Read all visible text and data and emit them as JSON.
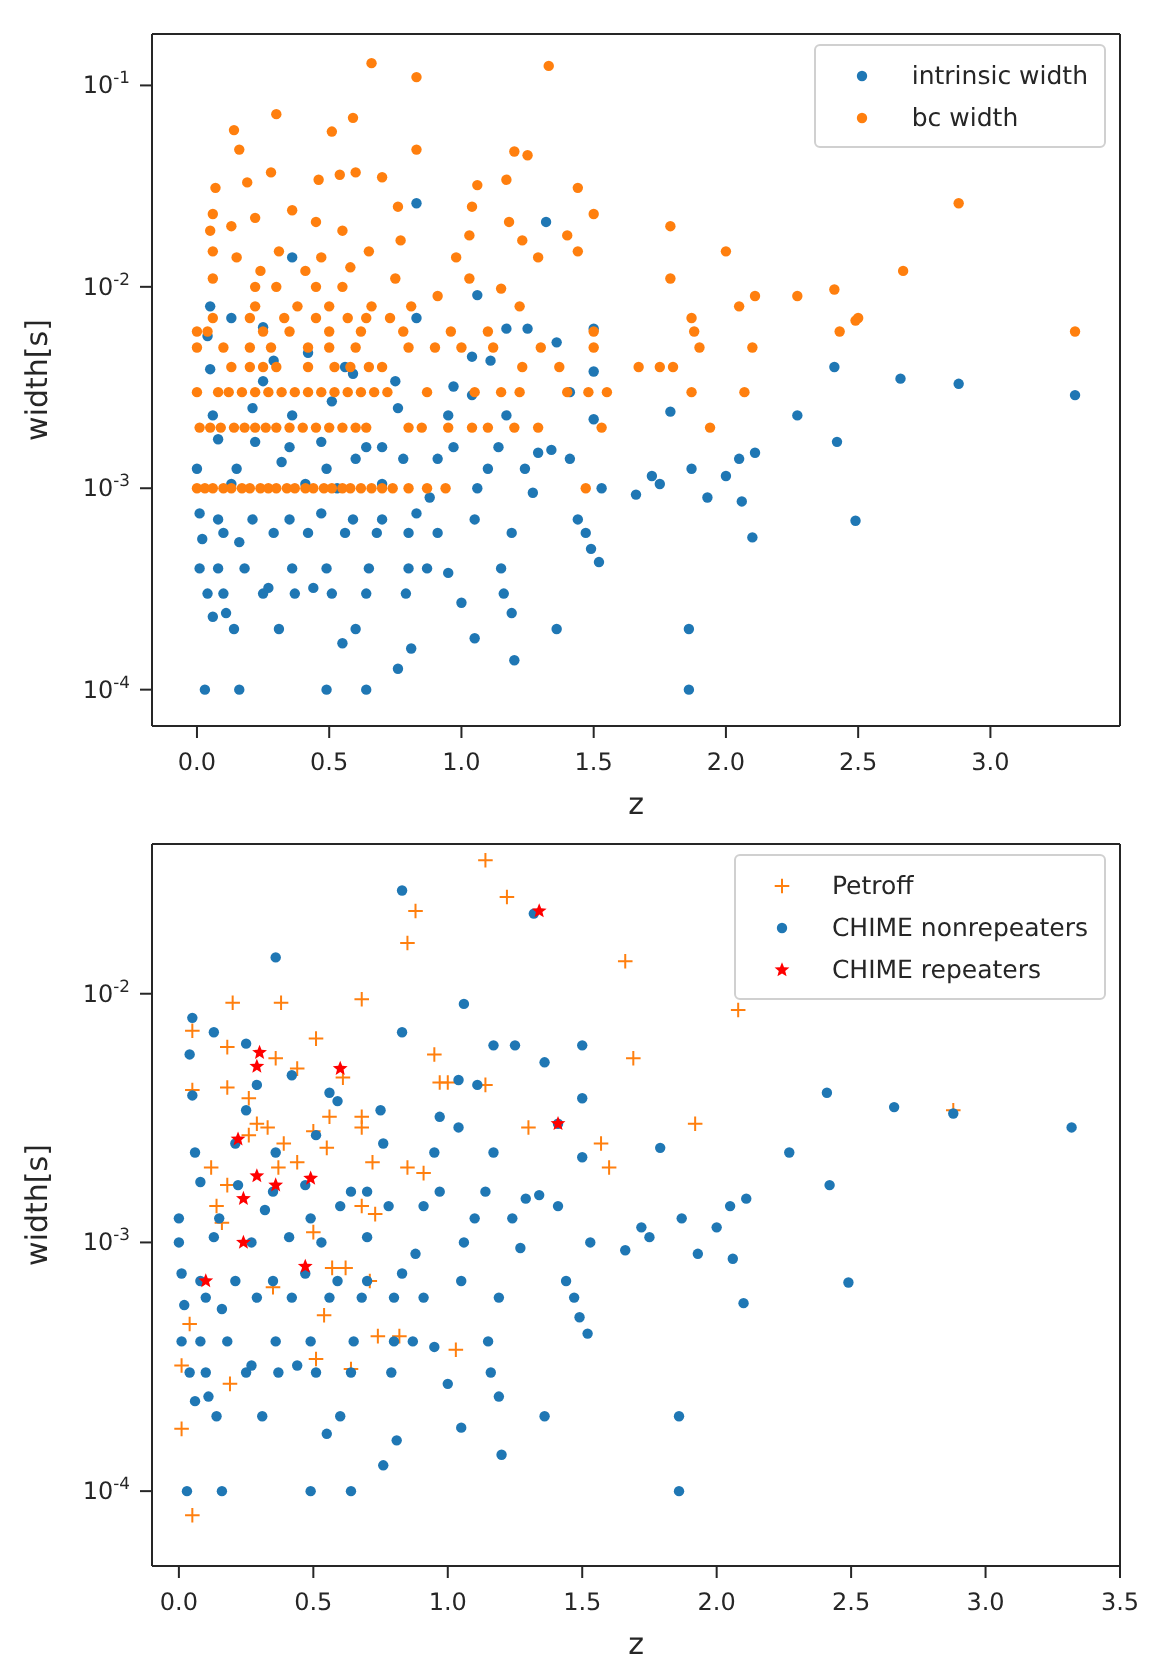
{
  "chart_data": [
    {
      "type": "scatter",
      "xlabel": "z",
      "ylabel": "width[s]",
      "log": "y",
      "legend": "top right",
      "xlim": [
        -0.17,
        3.49
      ],
      "xticks": [
        {
          "value": 0,
          "label": "0.0"
        },
        0.5,
        {
          "value": 1,
          "label": "1.0"
        },
        1.5,
        {
          "value": 2,
          "label": "2.0"
        },
        2.5,
        {
          "value": 3,
          "label": "3.0"
        }
      ],
      "ylim": [
        6.6e-05,
        0.18
      ],
      "yticks": [
        {
          "value": 0.0001,
          "label": "10$^{-4}$"
        },
        {
          "value": 0.001,
          "label": "10$^{-3}$"
        },
        {
          "value": 0.01,
          "label": "10$^{-2}$"
        },
        {
          "value": 0.1,
          "label": "10$^{-1}$"
        }
      ],
      "series": [
        {
          "name": "intrinsic width",
          "color": "#1f77b4",
          "marker": "circle",
          "x": [
            0.03,
            0.16,
            0.49,
            0.64,
            1.86,
            0.76,
            0.81,
            1.2,
            1.05,
            1.86,
            1.36,
            0.31,
            0.14,
            0.6,
            0.55,
            0.06,
            0.11,
            1.19,
            0.04,
            0.1,
            0.25,
            0.37,
            0.51,
            0.64,
            0.79,
            1.16,
            1.0,
            0.27,
            0.44,
            0.01,
            0.08,
            0.18,
            0.36,
            0.49,
            0.65,
            0.8,
            0.87,
            0.95,
            1.15,
            1.52,
            1.49,
            2.1,
            2.49,
            0.02,
            0.1,
            0.16,
            0.29,
            0.42,
            0.56,
            0.68,
            0.8,
            0.91,
            1.19,
            1.47,
            1.44,
            0.01,
            0.08,
            0.21,
            0.35,
            0.47,
            0.59,
            0.7,
            0.83,
            1.05,
            2.06,
            1.93,
            1.66,
            0.13,
            0.41,
            0.53,
            0.7,
            0.88,
            1.06,
            1.27,
            1.53,
            1.75,
            0,
            0.15,
            0.32,
            0.49,
            0.6,
            0.78,
            0.91,
            1.1,
            1.24,
            1.72,
            1.87,
            2.0,
            0.08,
            0.22,
            0.35,
            0.47,
            0.64,
            0.7,
            0.97,
            1.14,
            1.29,
            1.34,
            1.41,
            2.05,
            2.11,
            2.42,
            0.06,
            0.21,
            0.36,
            0.51,
            0.76,
            0.95,
            1.17,
            1.5,
            1.79,
            2.27,
            0.25,
            0.59,
            0.97,
            1.04,
            1.41,
            3.32,
            2.88,
            2.66,
            2.41,
            1.5,
            0.75,
            0.05,
            0.29,
            1.04,
            1.11,
            1.36,
            0.56,
            0.04,
            0.25,
            0.42,
            0.83,
            1.25,
            1.5,
            1.17,
            0.05,
            0.13,
            1.06,
            0.36,
            1.32,
            0.83
          ],
          "values": [
            0.0001,
            0.0001,
            0.0001,
            0.0001,
            0.0001,
            0.000127,
            0.00016,
            0.00014,
            0.00018,
            0.0002,
            0.0002,
            0.0002,
            0.0002,
            0.0002,
            0.00017,
            0.00023,
            0.00024,
            0.00024,
            0.0003,
            0.0003,
            0.0003,
            0.0003,
            0.0003,
            0.0003,
            0.0003,
            0.0003,
            0.00027,
            0.00032,
            0.00032,
            0.0004,
            0.0004,
            0.0004,
            0.0004,
            0.0004,
            0.0004,
            0.0004,
            0.0004,
            0.00038,
            0.0004,
            0.00043,
            0.0005,
            0.00057,
            0.00069,
            0.00056,
            0.0006,
            0.00054,
            0.0006,
            0.0006,
            0.0006,
            0.0006,
            0.0006,
            0.0006,
            0.0006,
            0.0006,
            0.0007,
            0.00075,
            0.0007,
            0.0007,
            0.0007,
            0.00075,
            0.0007,
            0.0007,
            0.00075,
            0.0007,
            0.00086,
            0.0009,
            0.00093,
            0.00105,
            0.00105,
            0.001,
            0.00105,
            0.0009,
            0.001,
            0.00095,
            0.001,
            0.00105,
            0.00125,
            0.00125,
            0.00135,
            0.00125,
            0.0014,
            0.0014,
            0.0014,
            0.00125,
            0.00125,
            0.00115,
            0.00125,
            0.00115,
            0.00175,
            0.0017,
            0.0016,
            0.0017,
            0.0016,
            0.0016,
            0.0016,
            0.0016,
            0.0015,
            0.00155,
            0.0014,
            0.0014,
            0.0015,
            0.0017,
            0.0023,
            0.0025,
            0.0023,
            0.0027,
            0.0025,
            0.0023,
            0.0023,
            0.0022,
            0.0024,
            0.0023,
            0.0034,
            0.0037,
            0.0032,
            0.0029,
            0.003,
            0.0029,
            0.0033,
            0.0035,
            0.004,
            0.0038,
            0.0034,
            0.0039,
            0.0043,
            0.0045,
            0.0043,
            0.0053,
            0.004,
            0.0057,
            0.0063,
            0.0047,
            0.007,
            0.0062,
            0.0062,
            0.0062,
            0.008,
            0.007,
            0.0091,
            0.014,
            0.021,
            0.026
          ]
        },
        {
          "name": "bc width",
          "color": "#ff7f0e",
          "marker": "circle",
          "x": [
            0,
            0.03,
            0.06,
            0.1,
            0.13,
            0.17,
            0.2,
            0.24,
            0.27,
            0.3,
            0.34,
            0.37,
            0.41,
            0.44,
            0.48,
            0.51,
            0.55,
            0.58,
            0.62,
            0.66,
            0.7,
            0.74,
            0.8,
            0.87,
            0.94,
            1.47,
            0.01,
            0.05,
            0.09,
            0.14,
            0.18,
            0.22,
            0.26,
            0.3,
            0.35,
            0.4,
            0.45,
            0.5,
            0.55,
            0.6,
            0.64,
            0.8,
            0.85,
            0.95,
            1.04,
            1.1,
            1.2,
            1.29,
            1.53,
            1.94,
            0,
            0.08,
            0.12,
            0.17,
            0.22,
            0.27,
            0.32,
            0.37,
            0.42,
            0.47,
            0.52,
            0.57,
            0.62,
            0.67,
            0.72,
            0.87,
            1.05,
            1.15,
            1.22,
            1.4,
            1.48,
            1.55,
            1.87,
            2.07,
            0.13,
            0.2,
            0.25,
            0.3,
            0.42,
            0.52,
            0.58,
            0.65,
            0.7,
            1.23,
            1.37,
            1.67,
            1.75,
            1.8,
            0,
            0.1,
            0.2,
            0.28,
            0.42,
            0.5,
            0.6,
            0.8,
            0.9,
            1.0,
            1.12,
            1.3,
            1.5,
            1.9,
            2.1,
            0,
            0.04,
            0.25,
            0.35,
            0.5,
            0.62,
            0.78,
            0.96,
            1.1,
            1.5,
            1.88,
            2.43,
            3.32,
            0.06,
            0.2,
            0.33,
            0.45,
            0.57,
            0.64,
            0.73,
            1.87,
            2.5,
            0.22,
            0.38,
            0.5,
            0.66,
            0.81,
            1.22,
            2.05,
            0.22,
            0.3,
            0.45,
            0.55,
            0.14,
            0.16,
            0.3,
            0.51,
            0.59,
            0.66,
            0.83,
            1.33,
            1.2,
            1.25,
            0.83,
            0.07,
            0.19,
            0.28,
            0.46,
            0.54,
            0.6,
            0.7,
            1.06,
            1.17,
            1.44,
            0.06,
            0.22,
            0.36,
            0.45,
            0.76,
            1.04,
            1.18,
            1.5,
            1.79,
            2.88,
            0.05,
            0.13,
            0.55,
            0.77,
            1.03,
            1.23,
            1.4,
            0.06,
            0.15,
            0.31,
            0.47,
            0.65,
            0.98,
            1.29,
            1.44,
            2.0,
            2.67,
            0.06,
            0.24,
            0.41,
            0.58,
            0.75,
            1.03,
            1.15,
            1.79,
            0.91,
            2.11,
            2.27,
            2.41,
            2.49
          ],
          "values": [
            0.001,
            0.001,
            0.001,
            0.001,
            0.001,
            0.001,
            0.001,
            0.001,
            0.001,
            0.001,
            0.001,
            0.001,
            0.001,
            0.001,
            0.001,
            0.001,
            0.001,
            0.001,
            0.001,
            0.001,
            0.001,
            0.001,
            0.001,
            0.001,
            0.001,
            0.001,
            0.002,
            0.002,
            0.002,
            0.002,
            0.002,
            0.002,
            0.002,
            0.002,
            0.002,
            0.002,
            0.002,
            0.002,
            0.002,
            0.002,
            0.002,
            0.002,
            0.002,
            0.002,
            0.002,
            0.002,
            0.002,
            0.002,
            0.002,
            0.002,
            0.003,
            0.003,
            0.003,
            0.003,
            0.003,
            0.003,
            0.003,
            0.003,
            0.003,
            0.003,
            0.003,
            0.003,
            0.003,
            0.003,
            0.003,
            0.003,
            0.003,
            0.003,
            0.003,
            0.003,
            0.003,
            0.003,
            0.003,
            0.003,
            0.004,
            0.004,
            0.004,
            0.004,
            0.004,
            0.004,
            0.004,
            0.004,
            0.004,
            0.004,
            0.004,
            0.004,
            0.004,
            0.004,
            0.005,
            0.005,
            0.005,
            0.005,
            0.005,
            0.005,
            0.005,
            0.005,
            0.005,
            0.005,
            0.005,
            0.005,
            0.005,
            0.005,
            0.005,
            0.006,
            0.006,
            0.006,
            0.006,
            0.006,
            0.006,
            0.006,
            0.006,
            0.006,
            0.006,
            0.006,
            0.006,
            0.006,
            0.007,
            0.007,
            0.007,
            0.007,
            0.007,
            0.007,
            0.007,
            0.007,
            0.007,
            0.008,
            0.008,
            0.008,
            0.008,
            0.008,
            0.008,
            0.008,
            0.01,
            0.01,
            0.01,
            0.01,
            0.06,
            0.048,
            0.072,
            0.059,
            0.069,
            0.129,
            0.11,
            0.125,
            0.047,
            0.045,
            0.048,
            0.031,
            0.033,
            0.037,
            0.034,
            0.036,
            0.037,
            0.035,
            0.032,
            0.034,
            0.031,
            0.023,
            0.022,
            0.024,
            0.021,
            0.025,
            0.025,
            0.021,
            0.023,
            0.02,
            0.026,
            0.019,
            0.02,
            0.019,
            0.017,
            0.018,
            0.017,
            0.018,
            0.015,
            0.014,
            0.015,
            0.014,
            0.015,
            0.014,
            0.014,
            0.015,
            0.015,
            0.012,
            0.011,
            0.012,
            0.012,
            0.0125,
            0.011,
            0.011,
            0.0098,
            0.011,
            0.009,
            0.009,
            0.009,
            0.0097,
            0.0068
          ]
        }
      ]
    },
    {
      "type": "scatter",
      "xlabel": "z",
      "ylabel": "width[s]",
      "log": "y",
      "legend": "top right",
      "xlim": [
        -0.1,
        3.5
      ],
      "xticks": [
        {
          "value": 0,
          "label": "0.0"
        },
        0.5,
        {
          "value": 1,
          "label": "1.0"
        },
        1.5,
        {
          "value": 2,
          "label": "2.0"
        },
        2.5,
        {
          "value": 3,
          "label": "3.0"
        },
        3.5
      ],
      "ylim": [
        5e-05,
        0.04
      ],
      "yticks": [
        {
          "value": 0.0001,
          "label": "10$^{-4}$"
        },
        {
          "value": 0.001,
          "label": "10$^{-3}$"
        },
        {
          "value": 0.01,
          "label": "10$^{-2}$"
        }
      ],
      "series": [
        {
          "name": "Petroff",
          "color": "#ff7f0e",
          "marker": "cross",
          "x": [
            1.14,
            1.22,
            0.88,
            0.85,
            1.66,
            0.2,
            0.38,
            0.68,
            2.08,
            0.05,
            0.51,
            0.18,
            0.36,
            0.44,
            0.95,
            1.69,
            0.05,
            0.18,
            0.26,
            0.61,
            0.97,
            1.0,
            1.14,
            0.68,
            0.56,
            0.29,
            0.33,
            0.5,
            0.68,
            1.3,
            1.92,
            2.88,
            0.26,
            0.39,
            1.57,
            0.55,
            0.44,
            0.72,
            0.12,
            0.85,
            0.91,
            1.6,
            0.18,
            0.37,
            0.14,
            0.68,
            0.16,
            0.73,
            0.5,
            0.57,
            0.62,
            0.71,
            0.35,
            0.54,
            0.04,
            0.74,
            0.82,
            1.03,
            0.51,
            0.64,
            0.01,
            0.19,
            0.01,
            0.05
          ],
          "values": [
            0.0344,
            0.0245,
            0.0215,
            0.016,
            0.0135,
            0.0092,
            0.0092,
            0.0095,
            0.0086,
            0.0071,
            0.0066,
            0.0061,
            0.0055,
            0.005,
            0.0057,
            0.0055,
            0.0041,
            0.0042,
            0.0038,
            0.0046,
            0.0044,
            0.0044,
            0.0043,
            0.0032,
            0.0032,
            0.003,
            0.0029,
            0.0028,
            0.0029,
            0.0029,
            0.003,
            0.0034,
            0.0027,
            0.0025,
            0.0025,
            0.0024,
            0.0021,
            0.0021,
            0.002,
            0.002,
            0.0019,
            0.002,
            0.0017,
            0.002,
            0.0014,
            0.0014,
            0.0012,
            0.0013,
            0.0011,
            0.00079,
            0.00079,
            0.0007,
            0.00066,
            0.00051,
            0.00047,
            0.00042,
            0.00042,
            0.00037,
            0.00034,
            0.00031,
            0.00032,
            0.00027,
            0.000178,
            8e-05
          ]
        },
        {
          "name": "CHIME nonrepeaters",
          "color": "#1f77b4",
          "marker": "circle",
          "x": [
            0.03,
            0.16,
            0.49,
            0.64,
            1.86,
            0.76,
            0.81,
            1.2,
            1.05,
            1.86,
            1.36,
            0.31,
            0.14,
            0.6,
            0.55,
            0.06,
            0.11,
            1.19,
            0.04,
            0.1,
            0.25,
            0.37,
            0.51,
            0.64,
            0.79,
            1.16,
            1.0,
            0.27,
            0.44,
            0.01,
            0.08,
            0.18,
            0.36,
            0.49,
            0.65,
            0.8,
            0.87,
            0.95,
            1.15,
            1.52,
            1.49,
            2.1,
            2.49,
            0.02,
            0.1,
            0.16,
            0.29,
            0.42,
            0.56,
            0.68,
            0.8,
            0.91,
            1.19,
            1.47,
            1.44,
            0.01,
            0.08,
            0.21,
            0.35,
            0.47,
            0.59,
            0.7,
            0.83,
            1.05,
            2.06,
            1.93,
            1.66,
            0,
            0.13,
            0.27,
            0.41,
            0.53,
            0.7,
            0.88,
            1.06,
            1.27,
            1.53,
            1.75,
            0,
            0.15,
            0.32,
            0.49,
            0.6,
            0.78,
            0.91,
            1.1,
            1.24,
            1.72,
            1.87,
            2.0,
            0.08,
            0.22,
            0.35,
            0.47,
            0.64,
            0.7,
            0.97,
            1.14,
            1.29,
            1.34,
            1.41,
            2.05,
            2.11,
            2.42,
            0.06,
            0.21,
            0.36,
            0.51,
            0.76,
            0.95,
            1.17,
            1.5,
            1.79,
            2.27,
            0.25,
            0.59,
            0.97,
            1.04,
            1.41,
            3.32,
            2.88,
            2.66,
            2.41,
            1.5,
            0.75,
            0.05,
            0.29,
            1.04,
            1.11,
            1.36,
            0.56,
            0.04,
            0.25,
            0.42,
            0.83,
            1.25,
            1.5,
            1.17,
            0.05,
            0.13,
            1.06,
            0.36,
            1.32,
            0.83
          ],
          "values": [
            0.0001,
            0.0001,
            0.0001,
            0.0001,
            0.0001,
            0.000127,
            0.00016,
            0.00014,
            0.00018,
            0.0002,
            0.0002,
            0.0002,
            0.0002,
            0.0002,
            0.00017,
            0.00023,
            0.00024,
            0.00024,
            0.0003,
            0.0003,
            0.0003,
            0.0003,
            0.0003,
            0.0003,
            0.0003,
            0.0003,
            0.00027,
            0.00032,
            0.00032,
            0.0004,
            0.0004,
            0.0004,
            0.0004,
            0.0004,
            0.0004,
            0.0004,
            0.0004,
            0.00038,
            0.0004,
            0.00043,
            0.0005,
            0.00057,
            0.00069,
            0.00056,
            0.0006,
            0.00054,
            0.0006,
            0.0006,
            0.0006,
            0.0006,
            0.0006,
            0.0006,
            0.0006,
            0.0006,
            0.0007,
            0.00075,
            0.0007,
            0.0007,
            0.0007,
            0.00075,
            0.0007,
            0.0007,
            0.00075,
            0.0007,
            0.00086,
            0.0009,
            0.00093,
            0.001,
            0.00105,
            0.001,
            0.00105,
            0.001,
            0.00105,
            0.0009,
            0.001,
            0.00095,
            0.001,
            0.00105,
            0.00125,
            0.00125,
            0.00135,
            0.00125,
            0.0014,
            0.0014,
            0.0014,
            0.00125,
            0.00125,
            0.00115,
            0.00125,
            0.00115,
            0.00175,
            0.0017,
            0.0016,
            0.0017,
            0.0016,
            0.0016,
            0.0016,
            0.0016,
            0.0015,
            0.00155,
            0.0014,
            0.0014,
            0.0015,
            0.0017,
            0.0023,
            0.0025,
            0.0023,
            0.0027,
            0.0025,
            0.0023,
            0.0023,
            0.0022,
            0.0024,
            0.0023,
            0.0034,
            0.0037,
            0.0032,
            0.0029,
            0.003,
            0.0029,
            0.0033,
            0.0035,
            0.004,
            0.0038,
            0.0034,
            0.0039,
            0.0043,
            0.0045,
            0.0043,
            0.0053,
            0.004,
            0.0057,
            0.0063,
            0.0047,
            0.007,
            0.0062,
            0.0062,
            0.0062,
            0.008,
            0.007,
            0.0091,
            0.014,
            0.021,
            0.026
          ]
        },
        {
          "name": "CHIME repeaters",
          "color": "#ff0000",
          "marker": "star",
          "x": [
            1.34,
            0.3,
            0.29,
            0.6,
            1.41,
            0.22,
            0.29,
            0.36,
            0.49,
            0.24,
            0.24,
            0.47,
            0.1
          ],
          "values": [
            0.0215,
            0.0058,
            0.0051,
            0.005,
            0.003,
            0.0026,
            0.00185,
            0.0017,
            0.00181,
            0.0015,
            0.001,
            0.0008,
            0.0007
          ]
        }
      ]
    }
  ]
}
